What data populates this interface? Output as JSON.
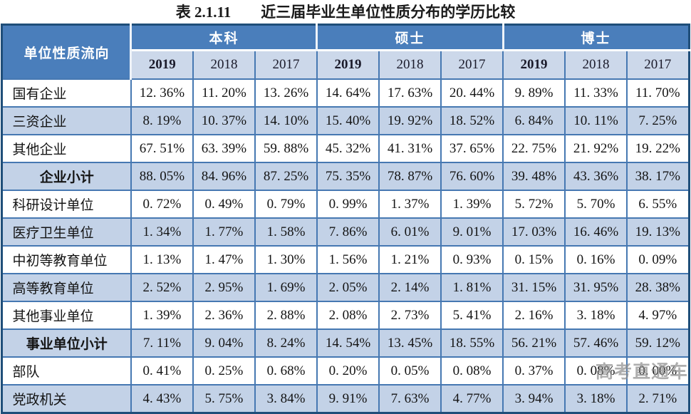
{
  "page": {
    "title": "表 2.1.11　　近三届毕业生单位性质分布的学历比较"
  },
  "table": {
    "corner_header": "单位性质流向",
    "degree_groups": [
      {
        "label": "本科",
        "years": [
          "2019",
          "2018",
          "2017"
        ]
      },
      {
        "label": "硕士",
        "years": [
          "2019",
          "2018",
          "2017"
        ]
      },
      {
        "label": "博士",
        "years": [
          "2019",
          "2018",
          "2017"
        ]
      }
    ],
    "rows": [
      {
        "label": "国有企业",
        "subtotal": false,
        "values": [
          "12. 36%",
          "11. 20%",
          "13. 26%",
          "14. 64%",
          "17. 63%",
          "20. 44%",
          "9. 89%",
          "11. 33%",
          "11. 70%"
        ]
      },
      {
        "label": "三资企业",
        "subtotal": false,
        "values": [
          "8. 19%",
          "10. 37%",
          "14. 10%",
          "15. 40%",
          "19. 92%",
          "18. 52%",
          "6. 84%",
          "10. 11%",
          "7. 25%"
        ]
      },
      {
        "label": "其他企业",
        "subtotal": false,
        "values": [
          "67. 51%",
          "63. 39%",
          "59. 88%",
          "45. 32%",
          "41. 31%",
          "37. 65%",
          "22. 75%",
          "21. 92%",
          "19. 22%"
        ]
      },
      {
        "label": "企业小计",
        "subtotal": true,
        "values": [
          "88. 05%",
          "84. 96%",
          "87. 25%",
          "75. 35%",
          "78. 87%",
          "76. 60%",
          "39. 48%",
          "43. 36%",
          "38. 17%"
        ]
      },
      {
        "label": "科研设计单位",
        "subtotal": false,
        "values": [
          "0. 72%",
          "0. 49%",
          "0. 79%",
          "0. 99%",
          "1. 37%",
          "1. 39%",
          "5. 72%",
          "5. 70%",
          "6. 55%"
        ]
      },
      {
        "label": "医疗卫生单位",
        "subtotal": false,
        "values": [
          "1. 34%",
          "1. 77%",
          "1. 58%",
          "7. 86%",
          "6. 01%",
          "9. 01%",
          "17. 03%",
          "16. 46%",
          "19. 13%"
        ]
      },
      {
        "label": "中初等教育单位",
        "subtotal": false,
        "values": [
          "1. 13%",
          "1. 47%",
          "1. 30%",
          "1. 56%",
          "1. 21%",
          "0. 93%",
          "0. 15%",
          "0. 16%",
          "0. 09%"
        ]
      },
      {
        "label": "高等教育单位",
        "subtotal": false,
        "values": [
          "2. 52%",
          "2. 95%",
          "1. 69%",
          "2. 05%",
          "2. 14%",
          "1. 81%",
          "31. 15%",
          "31. 95%",
          "28. 38%"
        ]
      },
      {
        "label": "其他事业单位",
        "subtotal": false,
        "values": [
          "1. 39%",
          "2. 36%",
          "2. 88%",
          "2. 08%",
          "2. 73%",
          "5. 41%",
          "2. 16%",
          "3. 18%",
          "4. 97%"
        ]
      },
      {
        "label": "事业单位小计",
        "subtotal": true,
        "values": [
          "7. 11%",
          "9. 04%",
          "8. 24%",
          "14. 54%",
          "13. 45%",
          "18. 55%",
          "56. 21%",
          "57. 46%",
          "59. 12%"
        ]
      },
      {
        "label": "部队",
        "subtotal": false,
        "values": [
          "0. 41%",
          "0. 25%",
          "0. 68%",
          "0. 20%",
          "0. 05%",
          "0. 08%",
          "0. 37%",
          "0. 08%",
          "0. 00%"
        ]
      },
      {
        "label": "党政机关",
        "subtotal": false,
        "values": [
          "4. 43%",
          "5. 75%",
          "3. 84%",
          "9. 91%",
          "7. 63%",
          "4. 77%",
          "3. 94%",
          "3. 18%",
          "2. 71%"
        ]
      }
    ]
  },
  "watermark": "高考直通车",
  "colors": {
    "header_blue": "#4a7ebb",
    "year_band": "#ccd8ea",
    "row_band": "#c3d2e7",
    "grid_line": "#4678b2",
    "outer_border": "#1f4e79",
    "watermark_gray": "#8f8f8f"
  },
  "chart_data": {
    "type": "table",
    "title": "表 2.1.11 近三届毕业生单位性质分布的学历比较",
    "row_header": "单位性质流向",
    "column_groups": [
      "本科",
      "硕士",
      "博士"
    ],
    "years": [
      "2019",
      "2018",
      "2017"
    ],
    "unit": "%",
    "categories": [
      "国有企业",
      "三资企业",
      "其他企业",
      "企业小计",
      "科研设计单位",
      "医疗卫生单位",
      "中初等教育单位",
      "高等教育单位",
      "其他事业单位",
      "事业单位小计",
      "部队",
      "党政机关"
    ],
    "series": [
      {
        "name": "本科 2019",
        "values": [
          12.36,
          8.19,
          67.51,
          88.05,
          0.72,
          1.34,
          1.13,
          2.52,
          1.39,
          7.11,
          0.41,
          4.43
        ]
      },
      {
        "name": "本科 2018",
        "values": [
          11.2,
          10.37,
          63.39,
          84.96,
          0.49,
          1.77,
          1.47,
          2.95,
          2.36,
          9.04,
          0.25,
          5.75
        ]
      },
      {
        "name": "本科 2017",
        "values": [
          13.26,
          14.1,
          59.88,
          87.25,
          0.79,
          1.58,
          1.3,
          1.69,
          2.88,
          8.24,
          0.68,
          3.84
        ]
      },
      {
        "name": "硕士 2019",
        "values": [
          14.64,
          15.4,
          45.32,
          75.35,
          0.99,
          7.86,
          1.56,
          2.05,
          2.08,
          14.54,
          0.2,
          9.91
        ]
      },
      {
        "name": "硕士 2018",
        "values": [
          17.63,
          19.92,
          41.31,
          78.87,
          1.37,
          6.01,
          1.21,
          2.14,
          2.73,
          13.45,
          0.05,
          7.63
        ]
      },
      {
        "name": "硕士 2017",
        "values": [
          20.44,
          18.52,
          37.65,
          76.6,
          1.39,
          9.01,
          0.93,
          1.81,
          5.41,
          18.55,
          0.08,
          4.77
        ]
      },
      {
        "name": "博士 2019",
        "values": [
          9.89,
          6.84,
          22.75,
          39.48,
          5.72,
          17.03,
          0.15,
          31.15,
          2.16,
          56.21,
          0.37,
          3.94
        ]
      },
      {
        "name": "博士 2018",
        "values": [
          11.33,
          10.11,
          21.92,
          43.36,
          5.7,
          16.46,
          0.16,
          31.95,
          3.18,
          57.46,
          0.08,
          3.18
        ]
      },
      {
        "name": "博士 2017",
        "values": [
          11.7,
          7.25,
          19.22,
          38.17,
          6.55,
          19.13,
          0.09,
          28.38,
          4.97,
          59.12,
          0.0,
          2.71
        ]
      }
    ]
  }
}
